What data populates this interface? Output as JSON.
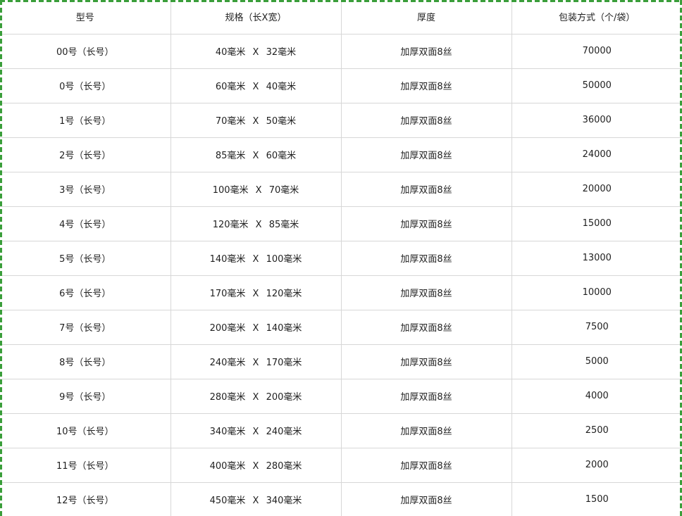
{
  "colors": {
    "outer_border_green": "#3a9e3a",
    "grid_line_gray": "#d7d7d7",
    "text_color": "#1f1f1f",
    "background": "#ffffff"
  },
  "table": {
    "headers": [
      {
        "key": "model",
        "label": "型号"
      },
      {
        "key": "spec",
        "label": "规格（长X宽）"
      },
      {
        "key": "thickness",
        "label": "厚度"
      },
      {
        "key": "packaging",
        "label": "包装方式（个/袋）"
      }
    ],
    "rows": [
      [
        "00号（长号）",
        "40毫米 X 32毫米",
        "加厚双面8丝",
        "70000"
      ],
      [
        "0号（长号）",
        "60毫米 X 40毫米",
        "加厚双面8丝",
        "50000"
      ],
      [
        "1号（长号）",
        "70毫米 X 50毫米",
        "加厚双面8丝",
        "36000"
      ],
      [
        "2号（长号）",
        "85毫米 X 60毫米",
        "加厚双面8丝",
        "24000"
      ],
      [
        "3号（长号）",
        "100毫米 X 70毫米",
        "加厚双面8丝",
        "20000"
      ],
      [
        "4号（长号）",
        "120毫米 X 85毫米",
        "加厚双面8丝",
        "15000"
      ],
      [
        "5号（长号）",
        "140毫米 X 100毫米",
        "加厚双面8丝",
        "13000"
      ],
      [
        "6号（长号）",
        "170毫米 X 120毫米",
        "加厚双面8丝",
        "10000"
      ],
      [
        "7号（长号）",
        "200毫米 X 140毫米",
        "加厚双面8丝",
        "7500"
      ],
      [
        "8号（长号）",
        "240毫米 X 170毫米",
        "加厚双面8丝",
        "5000"
      ],
      [
        "9号（长号）",
        "280毫米 X 200毫米",
        "加厚双面8丝",
        "4000"
      ],
      [
        "10号（长号）",
        "340毫米 X 240毫米",
        "加厚双面8丝",
        "2500"
      ],
      [
        "11号（长号）",
        "400毫米 X 280毫米",
        "加厚双面8丝",
        "2000"
      ],
      [
        "12号（长号）",
        "450毫米 X 340毫米",
        "加厚双面8丝",
        "1500"
      ]
    ]
  }
}
